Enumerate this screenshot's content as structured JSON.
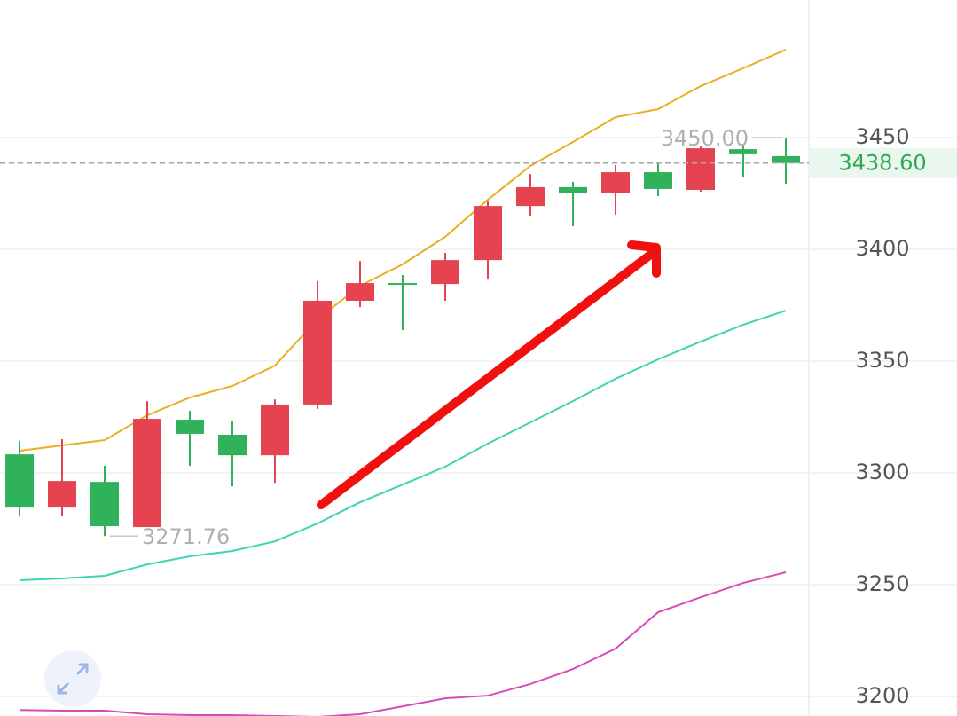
{
  "chart_data": {
    "type": "candlestick",
    "categories": [
      null,
      null,
      null,
      null,
      null,
      null,
      null,
      null,
      null,
      null,
      null,
      null,
      null,
      null,
      null,
      null,
      null,
      null,
      null
    ],
    "candles": {
      "open": [
        3308.3,
        3284.5,
        3296.0,
        3275.8,
        3323.8,
        3317.1,
        3307.9,
        3330.6,
        3377.0,
        3384.9,
        3384.5,
        3395.2,
        3419.4,
        3427.8,
        3425.0,
        3434.5,
        3426.6,
        3444.8,
        3441.7
      ],
      "high": [
        3314.3,
        3315.1,
        3303.2,
        3332.1,
        3327.8,
        3323.0,
        3332.9,
        3385.7,
        3394.8,
        3388.5,
        3398.4,
        3421.8,
        3433.7,
        3430.2,
        3437.7,
        3438.5,
        3446.0,
        3446.0,
        3450.0
      ],
      "low": [
        3280.6,
        3280.6,
        3271.76,
        3275.8,
        3303.2,
        3294.0,
        3295.6,
        3328.6,
        3374.2,
        3363.9,
        3377.0,
        3386.5,
        3415.1,
        3410.3,
        3415.5,
        3423.8,
        3425.8,
        3432.1,
        3429.4
      ],
      "close": [
        3284.5,
        3296.4,
        3276.2,
        3324.2,
        3317.5,
        3307.9,
        3330.6,
        3377.0,
        3384.9,
        3384.5,
        3395.2,
        3419.4,
        3427.8,
        3425.4,
        3434.5,
        3427.0,
        3445.2,
        3442.5,
        3438.6
      ],
      "up_color": "#e5434f",
      "down_color": "#30b25a"
    },
    "lines": [
      {
        "color": "#e8b020",
        "values": [
          3309.9,
          3312.3,
          3314.7,
          3325.8,
          3333.7,
          3338.9,
          3348.0,
          3368.7,
          3383.7,
          3393.3,
          3405.6,
          3422.2,
          3437.3,
          3448.0,
          3459.1,
          3462.7,
          3473.0,
          3481.0,
          3489.3
        ]
      },
      {
        "color": "#3dd3b5",
        "values": [
          3252.0,
          3252.8,
          3254.0,
          3259.1,
          3262.7,
          3265.1,
          3269.4,
          3277.4,
          3286.9,
          3294.8,
          3302.8,
          3313.1,
          3322.6,
          3332.1,
          3342.1,
          3350.8,
          3358.7,
          3366.3,
          3372.6
        ]
      },
      {
        "color": "#d94bb9",
        "values": [
          3194.0,
          3193.7,
          3193.7,
          3192.1,
          3191.7,
          3191.7,
          3191.3,
          3190.9,
          3192.1,
          3195.6,
          3199.2,
          3200.4,
          3205.6,
          3212.3,
          3221.4,
          3237.7,
          3244.4,
          3250.8,
          3255.6
        ]
      }
    ],
    "annotations": [
      {
        "value": 3450.0,
        "label": "3450.00"
      },
      {
        "value": 3271.76,
        "label": "3271.76"
      }
    ],
    "last_price": {
      "value": 3438.6,
      "label": "3438.60",
      "color": "#2fa84f"
    },
    "ylim": [
      3191.3,
      3511.5
    ],
    "yticks": [
      3200,
      3250,
      3300,
      3350,
      3400,
      3450
    ],
    "grid": true
  }
}
